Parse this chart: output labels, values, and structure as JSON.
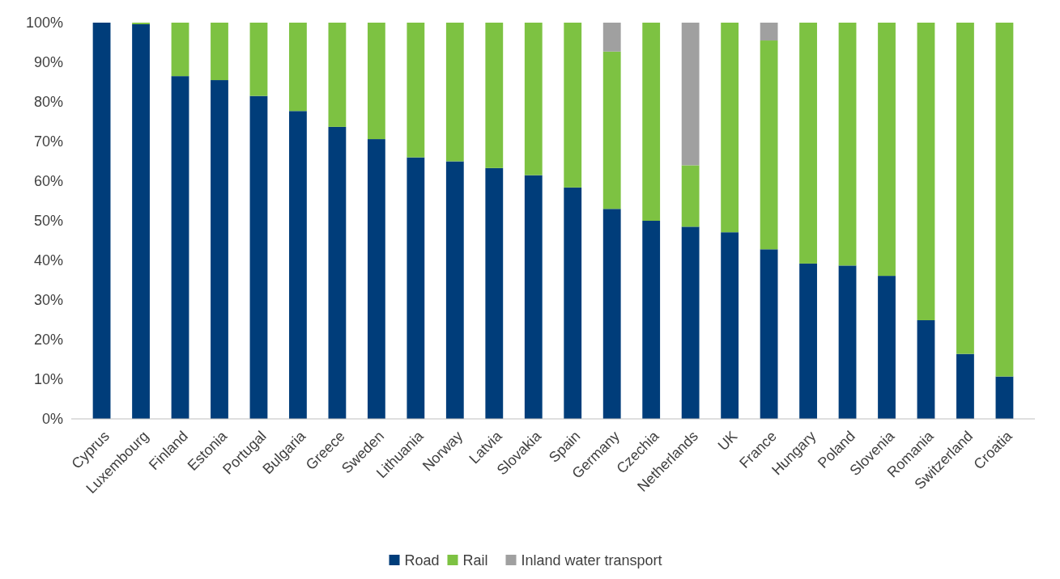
{
  "chart_data": {
    "type": "bar",
    "stacked": true,
    "categories": [
      "Cyprus",
      "Luxembourg",
      "Finland",
      "Estonia",
      "Portugal",
      "Bulgaria",
      "Greece",
      "Sweden",
      "Lithuania",
      "Norway",
      "Latvia",
      "Slovakia",
      "Spain",
      "Germany",
      "Czechia",
      "Netherlands",
      "UK",
      "France",
      "Hungary",
      "Poland",
      "Slovenia",
      "Romania",
      "Switzerland",
      "Croatia"
    ],
    "series": [
      {
        "name": "Road",
        "color": "#003d7a",
        "values": [
          100,
          99.6,
          86.5,
          85.5,
          81.5,
          77.7,
          73.7,
          70.6,
          66,
          65,
          63.3,
          61.5,
          58.4,
          53,
          50,
          48.5,
          47.1,
          42.8,
          39.2,
          38.7,
          36.1,
          24.9,
          16.4,
          10.7
        ]
      },
      {
        "name": "Rail",
        "color": "#7dc242",
        "values": [
          0,
          0.4,
          13.5,
          14.5,
          18.5,
          22.3,
          26.3,
          29.4,
          34,
          35,
          36.7,
          38.5,
          41.6,
          39.7,
          50,
          15.5,
          52.9,
          52.7,
          60.8,
          61.3,
          63.9,
          75.1,
          83.6,
          89.3
        ]
      },
      {
        "name": "Inland water transport",
        "color": "#a0a0a0",
        "values": [
          0,
          0,
          0,
          0,
          0,
          0,
          0,
          0,
          0,
          0,
          0,
          0,
          0,
          7.3,
          0,
          36,
          0,
          4.5,
          0,
          0,
          0,
          0,
          0,
          0
        ]
      }
    ],
    "ylim": [
      0,
      100
    ],
    "yticks": [
      {
        "value": 0,
        "label": "0%"
      },
      {
        "value": 10,
        "label": "10%"
      },
      {
        "value": 20,
        "label": "20%"
      },
      {
        "value": 30,
        "label": "30%"
      },
      {
        "value": 40,
        "label": "40%"
      },
      {
        "value": 50,
        "label": "50%"
      },
      {
        "value": 60,
        "label": "60%"
      },
      {
        "value": 70,
        "label": "70%"
      },
      {
        "value": 80,
        "label": "80%"
      },
      {
        "value": 90,
        "label": "90%"
      },
      {
        "value": 100,
        "label": "100%"
      }
    ],
    "grid": false,
    "legend": "bottom"
  }
}
